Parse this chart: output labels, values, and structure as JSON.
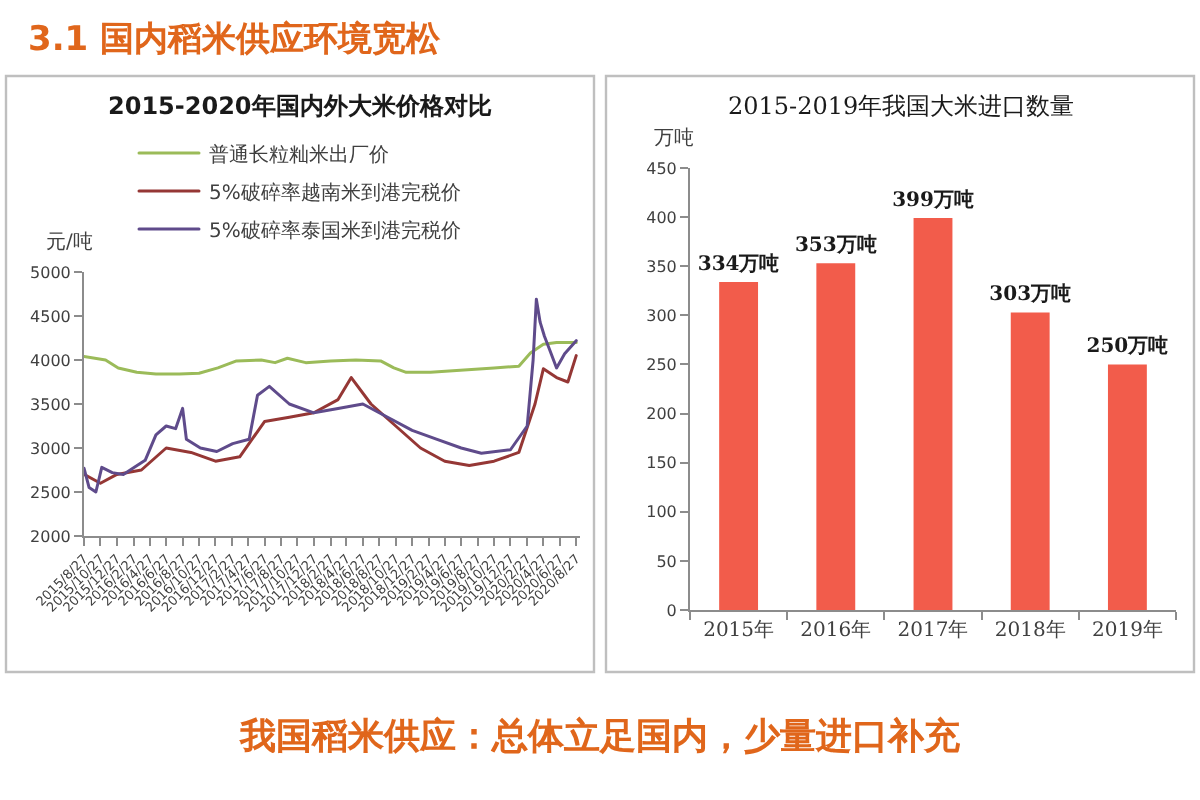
{
  "chart_data": [
    {
      "type": "other",
      "title": "3.1 国内稻米供应环境宽松",
      "annotations": [
        "我国稻米供应：总体立足国内，少量进口补充"
      ]
    },
    {
      "type": "line",
      "title": "2015-2020年国内外大米价格对比",
      "ylabel": "元/吨",
      "legend": "top",
      "line_style": "solid",
      "xlim": [
        "2015-08-27",
        "2020-09-10"
      ],
      "xticks": [
        {
          "value": "2015-08-27",
          "label": "2015/8/27"
        },
        {
          "value": "2015-10-27",
          "label": "2015/10/27"
        },
        {
          "value": "2015-12-27",
          "label": "2015/12/27"
        },
        {
          "value": "2016-02-27",
          "label": "2016/2/27"
        },
        {
          "value": "2016-04-27",
          "label": "2016/4/27"
        },
        {
          "value": "2016-06-27",
          "label": "2016/6/27"
        },
        {
          "value": "2016-08-27",
          "label": "2016/8/27"
        },
        {
          "value": "2016-10-27",
          "label": "2016/10/27"
        },
        {
          "value": "2016-12-27",
          "label": "2016/12/27"
        },
        {
          "value": "2017-02-27",
          "label": "2017/2/27"
        },
        {
          "value": "2017-04-27",
          "label": "2017/4/27"
        },
        {
          "value": "2017-06-27",
          "label": "2017/6/27"
        },
        {
          "value": "2017-08-27",
          "label": "2017/8/27"
        },
        {
          "value": "2017-10-27",
          "label": "2017/10/27"
        },
        {
          "value": "2017-12-27",
          "label": "2017/12/27"
        },
        {
          "value": "2018-02-27",
          "label": "2018/2/27"
        },
        {
          "value": "2018-04-27",
          "label": "2018/4/27"
        },
        {
          "value": "2018-06-27",
          "label": "2018/6/27"
        },
        {
          "value": "2018-08-27",
          "label": "2018/8/27"
        },
        {
          "value": "2018-10-27",
          "label": "2018/10/27"
        },
        {
          "value": "2018-12-27",
          "label": "2018/12/27"
        },
        {
          "value": "2019-02-27",
          "label": "2019/2/27"
        },
        {
          "value": "2019-04-27",
          "label": "2019/4/27"
        },
        {
          "value": "2019-06-27",
          "label": "2019/6/27"
        },
        {
          "value": "2019-08-27",
          "label": "2019/8/27"
        },
        {
          "value": "2019-10-27",
          "label": "2019/10/27"
        },
        {
          "value": "2019-12-27",
          "label": "2019/12/27"
        },
        {
          "value": "2020-02-27",
          "label": "2020/2/27"
        },
        {
          "value": "2020-04-27",
          "label": "2020/4/27"
        },
        {
          "value": "2020-06-27",
          "label": "2020/6/27"
        },
        {
          "value": "2020-08-27",
          "label": "2020/8/27"
        }
      ],
      "ylim": [
        2000,
        5000
      ],
      "yticks": [
        2000,
        2500,
        3000,
        3500,
        4000,
        4500,
        5000
      ],
      "series": [
        {
          "name": "普通长粒籼米出厂价",
          "color": "#9bbb59",
          "x": [
            "2015-08-27",
            "2015-11-15",
            "2016-01-01",
            "2016-03-10",
            "2016-05-20",
            "2016-08-15",
            "2016-10-27",
            "2017-01-05",
            "2017-03-15",
            "2017-06-15",
            "2017-08-05",
            "2017-09-20",
            "2017-11-27",
            "2018-02-27",
            "2018-06-01",
            "2018-09-01",
            "2018-10-20",
            "2018-12-05",
            "2019-03-05",
            "2019-06-10",
            "2019-10-27",
            "2020-01-27",
            "2020-03-10",
            "2020-04-27",
            "2020-06-15",
            "2020-08-27"
          ],
          "values": [
            4040,
            4000,
            3910,
            3860,
            3840,
            3840,
            3850,
            3910,
            3990,
            4000,
            3970,
            4020,
            3970,
            3990,
            4000,
            3990,
            3910,
            3860,
            3860,
            3880,
            3910,
            3930,
            4080,
            4180,
            4200,
            4200
          ]
        },
        {
          "name": "5%破碎率越南米到港完税价",
          "color": "#953735",
          "x": [
            "2015-08-27",
            "2015-10-27",
            "2015-12-27",
            "2016-03-27",
            "2016-06-27",
            "2016-09-27",
            "2016-12-27",
            "2017-03-27",
            "2017-06-27",
            "2017-09-27",
            "2017-12-27",
            "2018-03-27",
            "2018-05-15",
            "2018-07-27",
            "2018-10-27",
            "2019-01-27",
            "2019-04-27",
            "2019-07-27",
            "2019-10-27",
            "2020-01-27",
            "2020-03-27",
            "2020-04-27",
            "2020-06-15",
            "2020-07-27",
            "2020-08-27"
          ],
          "values": [
            2700,
            2600,
            2700,
            2750,
            3000,
            2950,
            2850,
            2900,
            3300,
            3350,
            3400,
            3550,
            3800,
            3500,
            3250,
            3000,
            2850,
            2800,
            2850,
            2950,
            3500,
            3900,
            3800,
            3750,
            4050
          ]
        },
        {
          "name": "5%破碎率泰国米到港完税价",
          "color": "#5f4b8b",
          "x": [
            "2015-08-27",
            "2015-09-15",
            "2015-10-10",
            "2015-11-01",
            "2015-12-10",
            "2016-01-20",
            "2016-03-01",
            "2016-04-10",
            "2016-05-20",
            "2016-06-27",
            "2016-08-01",
            "2016-08-27",
            "2016-09-10",
            "2016-11-01",
            "2017-01-01",
            "2017-03-01",
            "2017-05-01",
            "2017-06-01",
            "2017-07-15",
            "2017-09-27",
            "2017-12-27",
            "2018-03-27",
            "2018-06-27",
            "2018-09-27",
            "2018-12-27",
            "2019-03-27",
            "2019-06-27",
            "2019-09-10",
            "2019-12-27",
            "2020-02-27",
            "2020-03-20",
            "2020-04-01",
            "2020-04-15",
            "2020-05-01",
            "2020-05-20",
            "2020-06-15",
            "2020-07-15",
            "2020-08-27"
          ],
          "values": [
            2770,
            2550,
            2500,
            2780,
            2720,
            2700,
            2780,
            2860,
            3150,
            3250,
            3220,
            3450,
            3100,
            3000,
            2960,
            3050,
            3100,
            3600,
            3700,
            3500,
            3400,
            3450,
            3500,
            3350,
            3200,
            3100,
            3000,
            2940,
            2980,
            3250,
            4000,
            4690,
            4430,
            4270,
            4120,
            3910,
            4070,
            4220
          ]
        }
      ]
    },
    {
      "type": "bar",
      "title": "2015-2019年我国大米进口数量",
      "ylabel": "万吨",
      "categories": [
        "2015年",
        "2016年",
        "2017年",
        "2018年",
        "2019年"
      ],
      "values": [
        334,
        353,
        399,
        303,
        250
      ],
      "value_labels": [
        "334万吨",
        "353万吨",
        "399万吨",
        "303万吨",
        "250万吨"
      ],
      "color": "#f25c4b",
      "ylim": [
        0,
        450
      ],
      "yticks": [
        0,
        50,
        100,
        150,
        200,
        250,
        300,
        350,
        400,
        450
      ]
    }
  ]
}
